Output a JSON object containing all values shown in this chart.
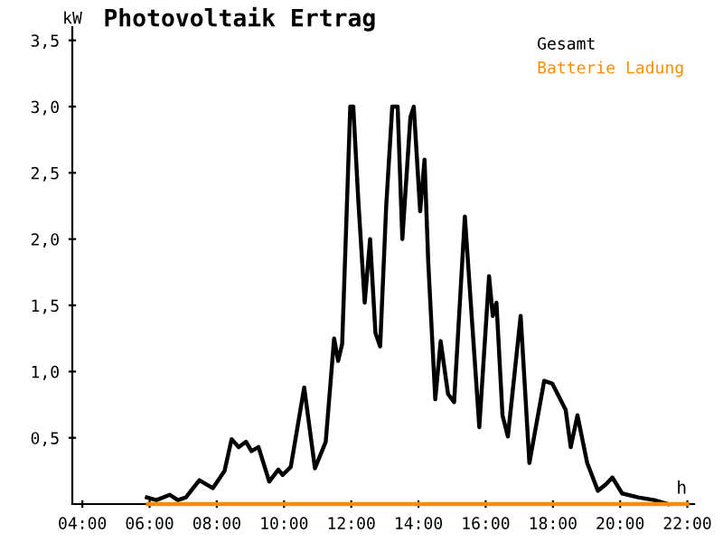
{
  "chart_data": {
    "type": "line",
    "title": "Photovoltaik Ertrag",
    "xlabel": "h",
    "ylabel": "kW",
    "xlim": [
      3.7,
      22.2
    ],
    "ylim": [
      0,
      3.6
    ],
    "xticks": [
      {
        "value": 4,
        "label": "04:00"
      },
      {
        "value": 6,
        "label": "06:00"
      },
      {
        "value": 8,
        "label": "08:00"
      },
      {
        "value": 10,
        "label": "10:00"
      },
      {
        "value": 12,
        "label": "12:00"
      },
      {
        "value": 14,
        "label": "14:00"
      },
      {
        "value": 16,
        "label": "16:00"
      },
      {
        "value": 18,
        "label": "18:00"
      },
      {
        "value": 20,
        "label": "20:00"
      },
      {
        "value": 22,
        "label": "22:00"
      }
    ],
    "yticks": [
      {
        "value": 0.5,
        "label": "0,5"
      },
      {
        "value": 1,
        "label": "1,0"
      },
      {
        "value": 1.5,
        "label": "1,5"
      },
      {
        "value": 2,
        "label": "2,0"
      },
      {
        "value": 2.5,
        "label": "2,5"
      },
      {
        "value": 3,
        "label": "3,0"
      },
      {
        "value": 3.5,
        "label": "3,5"
      }
    ],
    "grid": false,
    "legend": "top right",
    "marker": "none",
    "line_style": "solid",
    "series": [
      {
        "name": "Gesamt",
        "color": "#000000",
        "x": [
          5.92,
          6.2,
          6.6,
          6.84,
          7.08,
          7.48,
          7.88,
          8.23,
          8.44,
          8.65,
          8.87,
          9.03,
          9.24,
          9.56,
          9.83,
          9.96,
          10.2,
          10.6,
          10.92,
          11.24,
          11.49,
          11.61,
          11.73,
          11.97,
          12.06,
          12.21,
          12.4,
          12.56,
          12.72,
          12.86,
          13.04,
          13.22,
          13.38,
          13.52,
          13.76,
          13.86,
          14.05,
          14.18,
          14.29,
          14.5,
          14.66,
          14.88,
          15.06,
          15.38,
          15.81,
          16.1,
          16.21,
          16.32,
          16.5,
          16.66,
          17.04,
          17.3,
          17.74,
          17.98,
          18.38,
          18.53,
          18.73,
          19.02,
          19.34,
          19.58,
          19.77,
          20.06,
          20.54,
          21.02,
          21.42
        ],
        "values": [
          0.05,
          0.03,
          0.07,
          0.03,
          0.05,
          0.18,
          0.12,
          0.25,
          0.49,
          0.43,
          0.47,
          0.4,
          0.43,
          0.17,
          0.26,
          0.22,
          0.28,
          0.88,
          0.27,
          0.47,
          1.25,
          1.08,
          1.21,
          3.0,
          3.0,
          2.29,
          1.52,
          2.0,
          1.29,
          1.19,
          2.25,
          3.0,
          3.0,
          2.0,
          2.92,
          3.0,
          2.21,
          2.6,
          1.83,
          0.79,
          1.23,
          0.83,
          0.77,
          2.17,
          0.58,
          1.72,
          1.42,
          1.52,
          0.67,
          0.51,
          1.42,
          0.31,
          0.93,
          0.91,
          0.71,
          0.43,
          0.67,
          0.31,
          0.1,
          0.15,
          0.2,
          0.08,
          0.05,
          0.03,
          0.0
        ]
      },
      {
        "name": "Batterie Ladung",
        "color": "#ff8c00",
        "x": [
          5.95,
          22.0
        ],
        "values": [
          0,
          0
        ]
      }
    ]
  }
}
